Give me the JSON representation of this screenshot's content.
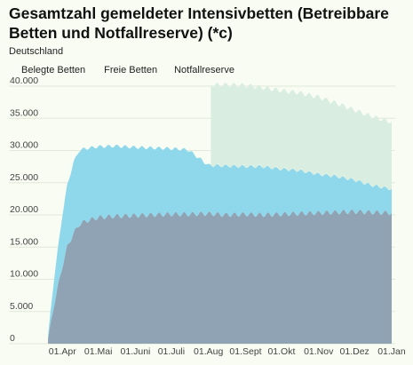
{
  "title": "Gesamtzahl gemeldeter Intensivbetten (Betreibbare Betten und Notfallreserve) (*c)",
  "subtitle": "Deutschland",
  "chart_data": {
    "type": "area",
    "stacked": true,
    "legend": [
      "Belegte Betten",
      "Freie Betten",
      "Notfallreserve"
    ],
    "legend_position": "top-left",
    "ylim": [
      0,
      40000
    ],
    "y_ticks": [
      0,
      5000,
      10000,
      15000,
      20000,
      25000,
      30000,
      35000,
      40000
    ],
    "y_tick_labels": [
      "0",
      "5.000",
      "10.000",
      "15.000",
      "20.000",
      "25.000",
      "30.000",
      "35.000",
      "40.000"
    ],
    "x_tick_labels": [
      "01.Apr",
      "01.Mai",
      "01.Juni",
      "01.Juli",
      "01.Aug",
      "01.Sept",
      "01.Okt",
      "01.Nov",
      "01.Dez",
      "01.Jan"
    ],
    "x_ticks": [
      "2020-04-01",
      "2020-05-01",
      "2020-06-01",
      "2020-07-01",
      "2020-08-01",
      "2020-09-01",
      "2020-10-01",
      "2020-11-01",
      "2020-12-01",
      "2021-01-01"
    ],
    "grid": true,
    "colors": {
      "belegt": "#8fa3b5",
      "frei": "#8fd8ec",
      "reserve": "#d9eee0"
    },
    "series": [
      {
        "name": "Belegte Betten",
        "x": [
          "2020-03-20",
          "2020-03-25",
          "2020-04-01",
          "2020-04-05",
          "2020-04-10",
          "2020-04-15",
          "2020-04-20",
          "2020-05-01",
          "2020-05-15",
          "2020-06-01",
          "2020-06-15",
          "2020-07-01",
          "2020-07-15",
          "2020-08-01",
          "2020-08-15",
          "2020-09-01",
          "2020-09-15",
          "2020-10-01",
          "2020-10-15",
          "2020-11-01",
          "2020-11-15",
          "2020-12-01",
          "2020-12-15",
          "2021-01-01"
        ],
        "values": [
          500,
          6000,
          12000,
          15000,
          17000,
          18500,
          19000,
          19600,
          19800,
          19900,
          20000,
          20100,
          20100,
          20200,
          20000,
          20100,
          20000,
          20100,
          20200,
          20300,
          20400,
          20500,
          20400,
          20300
        ]
      },
      {
        "name": "Freie Betten",
        "x": [
          "2020-03-20",
          "2020-03-25",
          "2020-04-01",
          "2020-04-05",
          "2020-04-10",
          "2020-04-15",
          "2020-04-20",
          "2020-05-01",
          "2020-05-15",
          "2020-06-01",
          "2020-06-15",
          "2020-07-01",
          "2020-07-15",
          "2020-08-01",
          "2020-08-15",
          "2020-09-01",
          "2020-09-15",
          "2020-10-01",
          "2020-10-15",
          "2020-11-01",
          "2020-11-15",
          "2020-12-01",
          "2020-12-15",
          "2021-01-01"
        ],
        "values": [
          500,
          4000,
          8000,
          9500,
          11000,
          11500,
          11300,
          11000,
          10900,
          10600,
          10400,
          10200,
          10000,
          7500,
          7600,
          7400,
          7500,
          7000,
          6700,
          6000,
          5600,
          4900,
          4200,
          3700
        ]
      },
      {
        "name": "Notfallreserve",
        "x": [
          "2020-08-03",
          "2020-08-15",
          "2020-09-01",
          "2020-09-15",
          "2020-10-01",
          "2020-10-15",
          "2020-11-01",
          "2020-11-15",
          "2020-12-01",
          "2020-12-15",
          "2021-01-01"
        ],
        "values": [
          12500,
          12600,
          12600,
          12300,
          12200,
          12100,
          12000,
          11400,
          10900,
          10700,
          10400
        ]
      }
    ]
  }
}
